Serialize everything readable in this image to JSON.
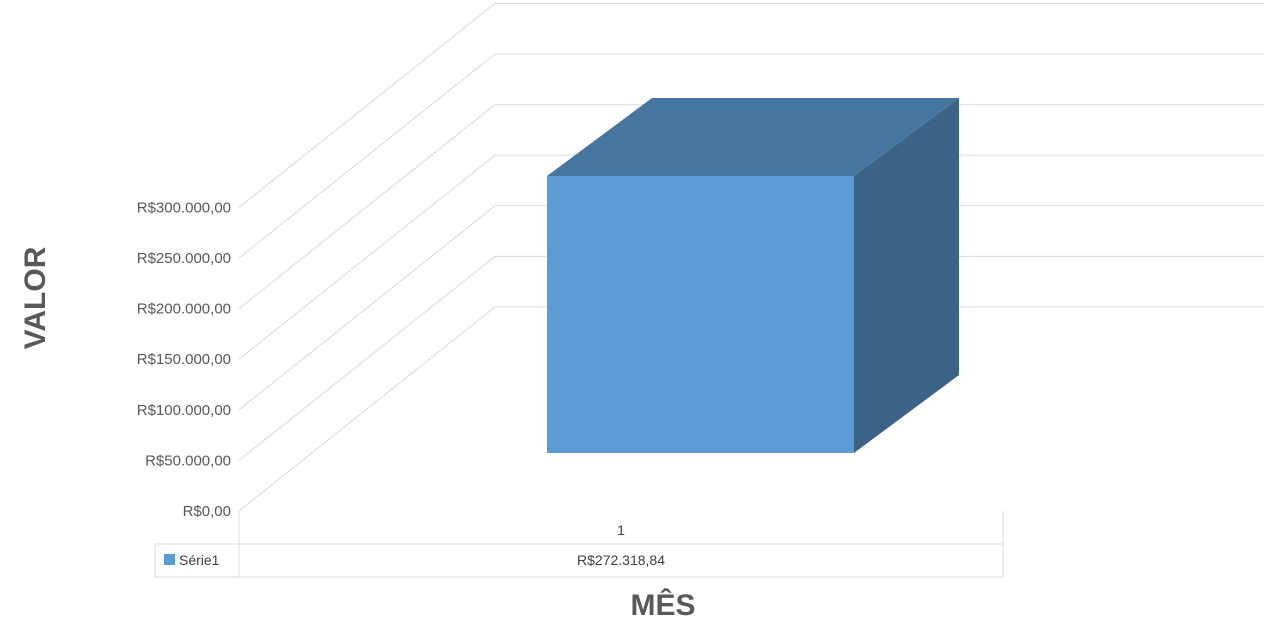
{
  "chart_data": {
    "type": "bar",
    "three_d": true,
    "categories": [
      "1"
    ],
    "series": [
      {
        "name": "Série1",
        "values": [
          272318.84
        ],
        "color": "#5b9bd5"
      }
    ],
    "data_table_values": [
      "R$272.318,84"
    ],
    "ylim": [
      0,
      300000
    ],
    "ytick_values": [
      0,
      50000,
      100000,
      150000,
      200000,
      250000,
      300000
    ],
    "ytick_labels": [
      "R$0,00",
      "R$50.000,00",
      "R$100.000,00",
      "R$150.000,00",
      "R$200.000,00",
      "R$250.000,00",
      "R$300.000,00"
    ],
    "xlabel": "MÊS",
    "ylabel": "VALOR",
    "grid": true,
    "data_table": true,
    "colors": {
      "front": "#5b9bd5",
      "top": "#4676a0",
      "side": "#3a6387",
      "grid": "#d9d9d9"
    }
  }
}
